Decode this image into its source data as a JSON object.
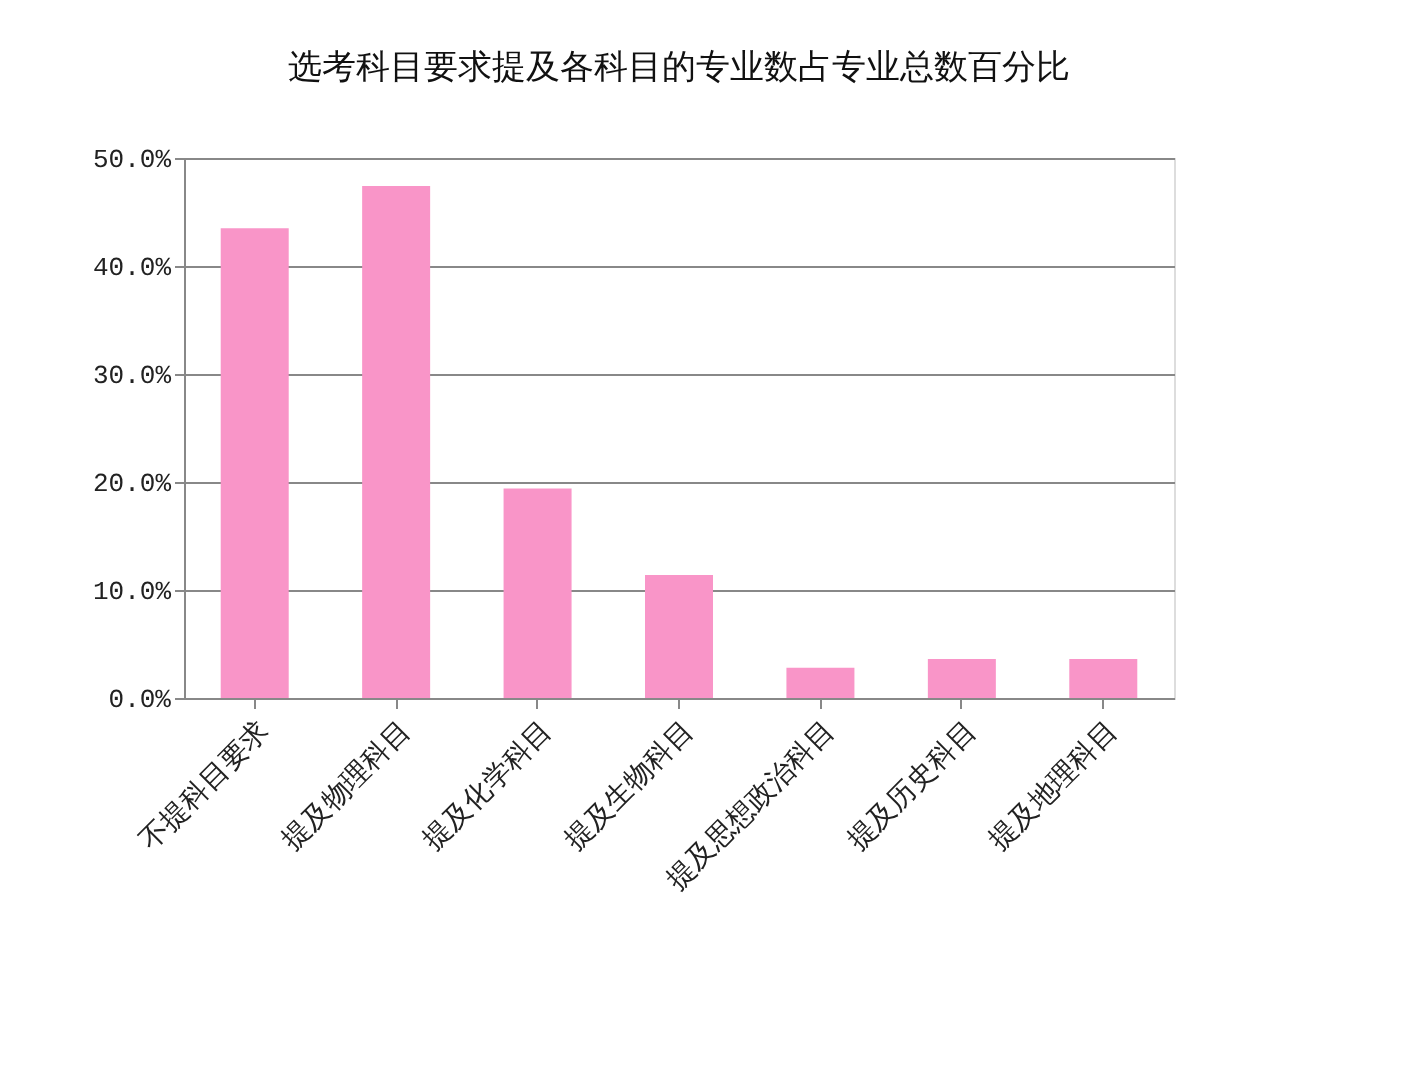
{
  "chart_data": {
    "type": "bar",
    "title": "选考科目要求提及各科目的专业数占专业总数百分比",
    "categories": [
      "不提科目要求",
      "提及物理科目",
      "提及化学科目",
      "提及生物科目",
      "提及思想政治科目",
      "提及历史科目",
      "提及地理科目"
    ],
    "values": [
      43.5,
      47.4,
      19.4,
      11.4,
      2.8,
      3.6,
      3.6
    ],
    "color": "#f995c8",
    "ylim": [
      0,
      50
    ],
    "yticks": [
      {
        "value": 0,
        "label": "0.0%"
      },
      {
        "value": 10,
        "label": "10.0%"
      },
      {
        "value": 20,
        "label": "20.0%"
      },
      {
        "value": 30,
        "label": "30.0%"
      },
      {
        "value": 40,
        "label": "40.0%"
      },
      {
        "value": 50,
        "label": "50.0%"
      }
    ],
    "grid": "y"
  }
}
